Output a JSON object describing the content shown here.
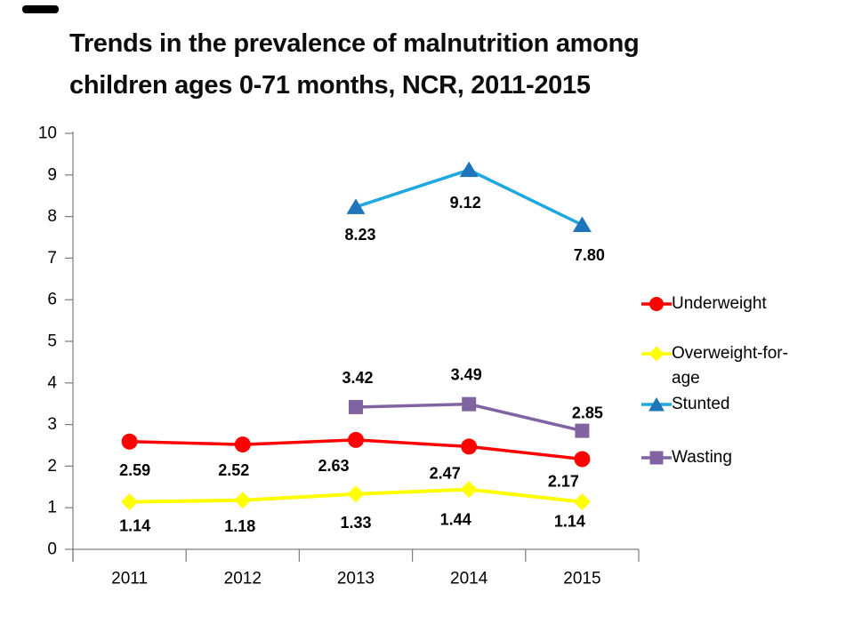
{
  "header": {
    "title_lines": [
      "Trends in the prevalence of malnutrition among",
      "children ages 0-71 months, NCR, 2011-2015"
    ]
  },
  "chart_data": {
    "type": "line",
    "title": "Trends in the prevalence of malnutrition among children ages 0-71 months, NCR, 2011-2015",
    "categories": [
      "2011",
      "2012",
      "2013",
      "2014",
      "2015"
    ],
    "xlabel": "",
    "ylabel": "",
    "ylim": [
      0,
      10
    ],
    "ytick_step": 1,
    "grid": false,
    "legend_position": "right",
    "axis_color": "#808080",
    "label_color": "#000000",
    "series": [
      {
        "name": "Underweight",
        "marker": "circle",
        "line_color": "#FF0000",
        "marker_color": "#FF0000",
        "values": [
          2.59,
          2.52,
          2.63,
          2.47,
          2.17
        ],
        "labels": [
          "2.59",
          "2.52",
          "2.63",
          "2.47",
          "2.17"
        ]
      },
      {
        "name": "Overweight-for-age",
        "marker": "diamond",
        "line_color": "#FFFF00",
        "marker_color": "#FFFF00",
        "values": [
          1.14,
          1.18,
          1.33,
          1.44,
          1.14
        ],
        "labels": [
          "1.14",
          "1.18",
          "1.33",
          "1.44",
          "1.14"
        ]
      },
      {
        "name": "Stunted",
        "marker": "triangle",
        "line_color": "#1FA8E0",
        "marker_color": "#1F75BB",
        "values": [
          null,
          null,
          8.23,
          9.12,
          7.8
        ],
        "labels": [
          null,
          null,
          "8.23",
          "9.12",
          "7.80"
        ]
      },
      {
        "name": "Wasting",
        "marker": "square",
        "line_color": "#8064A2",
        "marker_color": "#8064A2",
        "values": [
          null,
          null,
          3.42,
          3.49,
          2.85
        ],
        "labels": [
          null,
          null,
          "3.42",
          "3.49",
          "2.85"
        ]
      }
    ]
  }
}
